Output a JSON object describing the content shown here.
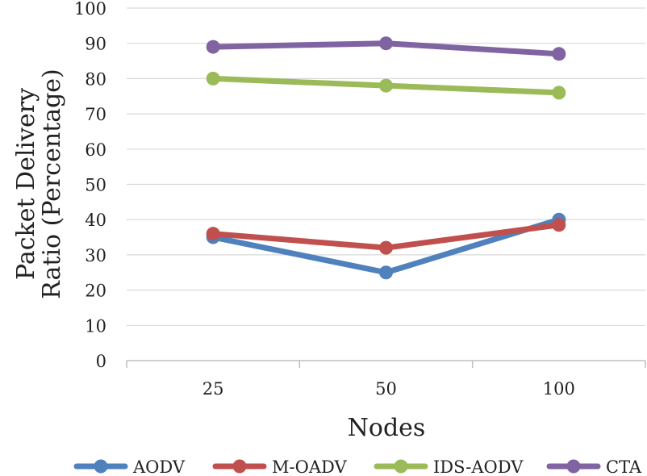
{
  "chart_data": {
    "type": "line",
    "title": "",
    "xlabel": "Nodes",
    "ylabel_lines": [
      "Packet Delivery",
      "Ratio (Percentage)"
    ],
    "categories": [
      "25",
      "50",
      "100"
    ],
    "ylim": [
      0,
      100
    ],
    "yticks": [
      "0",
      "10",
      "20",
      "30",
      "40",
      "50",
      "60",
      "70",
      "80",
      "90",
      "100"
    ],
    "grid": true,
    "legend": "bottom",
    "series": [
      {
        "name": "AODV",
        "values": [
          35,
          25,
          40
        ],
        "color": "#4f81bd"
      },
      {
        "name": "M-OADV",
        "values": [
          36,
          32,
          38.5
        ],
        "color": "#c0504d"
      },
      {
        "name": "IDS-AODV",
        "values": [
          80,
          78,
          76
        ],
        "color": "#9bbb59"
      },
      {
        "name": "CTA",
        "values": [
          89,
          90,
          87
        ],
        "color": "#8064a2"
      }
    ]
  }
}
